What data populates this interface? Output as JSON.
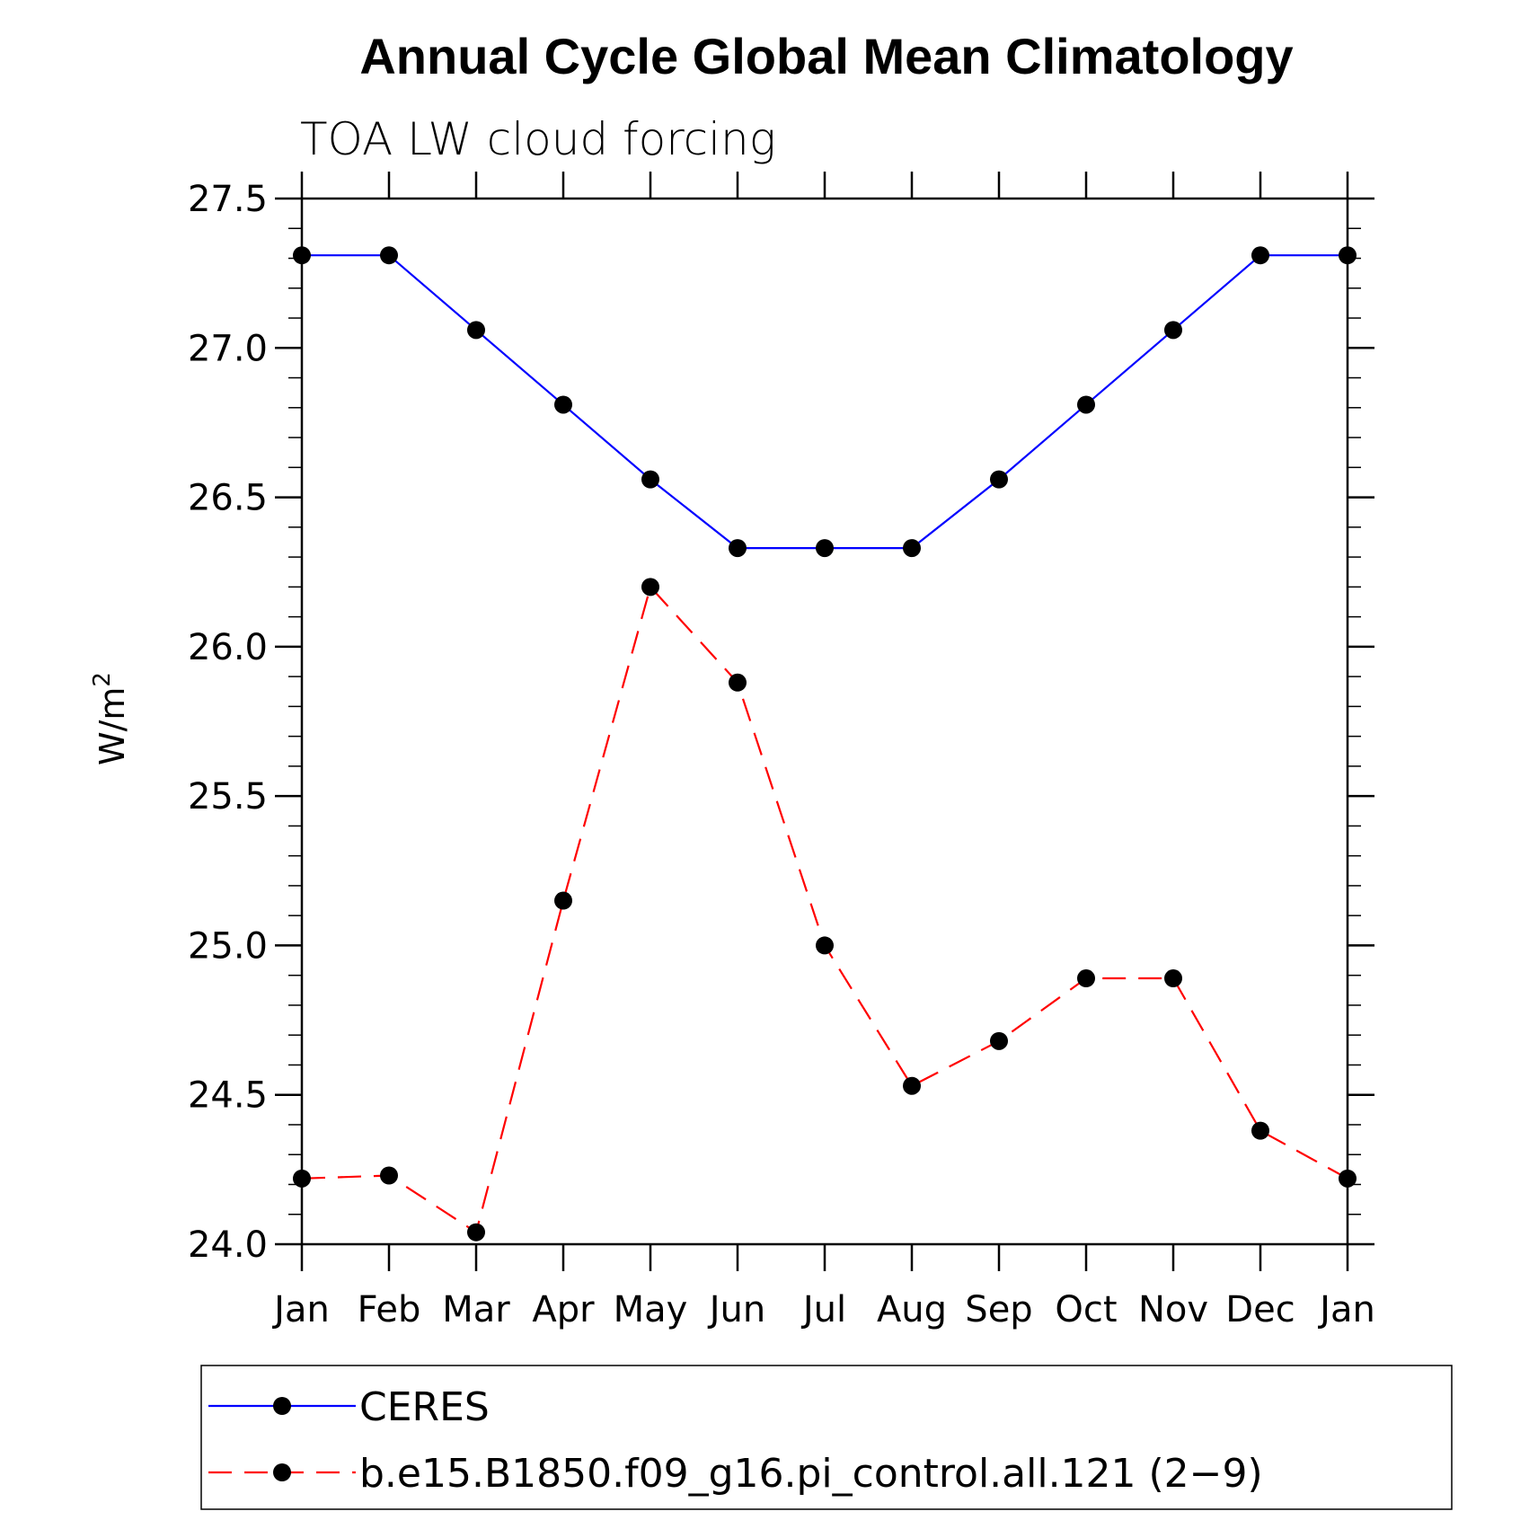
{
  "chart_data": {
    "type": "line",
    "title": "Annual Cycle Global Mean Climatology",
    "subtitle": "TOA LW cloud forcing",
    "ylabel": "W/m",
    "ylabel_superscript": "2",
    "ylim": [
      24.0,
      27.5
    ],
    "yticks": [
      "24.0",
      "24.5",
      "25.0",
      "25.5",
      "26.0",
      "26.5",
      "27.0",
      "27.5"
    ],
    "categories": [
      "Jan",
      "Feb",
      "Mar",
      "Apr",
      "May",
      "Jun",
      "Jul",
      "Aug",
      "Sep",
      "Oct",
      "Nov",
      "Dec",
      "Jan"
    ],
    "grid": false,
    "legend_position": "bottom",
    "series": [
      {
        "name": "CERES",
        "color": "#0000ff",
        "dash": "solid",
        "values": [
          27.31,
          27.31,
          27.06,
          26.81,
          26.56,
          26.33,
          26.33,
          26.33,
          26.56,
          26.81,
          27.06,
          27.31,
          27.31
        ]
      },
      {
        "name": "b.e15.B1850.f09_g16.pi_control.all.121 (2−9)",
        "color": "#ff0000",
        "dash": "dashed",
        "values": [
          24.22,
          24.23,
          24.04,
          25.15,
          26.2,
          25.88,
          25.0,
          24.53,
          24.68,
          24.89,
          24.89,
          24.38,
          24.22
        ]
      }
    ]
  }
}
